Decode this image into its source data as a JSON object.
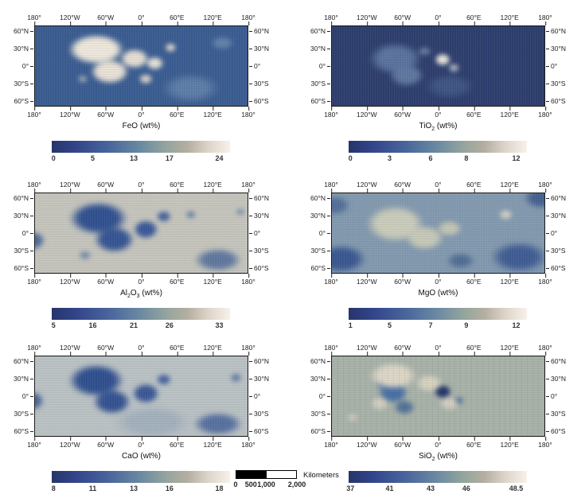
{
  "figure": {
    "kind": "lunar-elemental-abundance-maps",
    "background": "#ffffff",
    "panel_order": [
      "FeO",
      "TiO2",
      "Al2O3",
      "MgO",
      "CaO",
      "SiO2"
    ]
  },
  "axes": {
    "lon_labels": [
      "180°",
      "120°W",
      "60°W",
      "0°",
      "60°E",
      "120°E",
      "180°"
    ],
    "lon_pos": [
      0,
      16.67,
      33.33,
      50,
      66.67,
      83.33,
      100
    ],
    "lat_labels": [
      "60°N",
      "30°N",
      "0°",
      "30°S",
      "60°S"
    ],
    "lat_pos": [
      7,
      28.5,
      50,
      71.5,
      93
    ]
  },
  "colormap": {
    "stops": [
      [
        "#27356b",
        0
      ],
      [
        "#33458b",
        14
      ],
      [
        "#49659c",
        32
      ],
      [
        "#6b8aa1",
        50
      ],
      [
        "#93a49e",
        64
      ],
      [
        "#b3aea0",
        76
      ],
      [
        "#ded5c9",
        88
      ],
      [
        "#f7f1ea",
        100
      ]
    ]
  },
  "colorbar_tick_pos": [
    1,
    23,
    46,
    66,
    94
  ],
  "maps": [
    {
      "id": "feo",
      "title": "FeO (wt%)",
      "title_parts": [
        [
          "FeO",
          false
        ],
        [
          " (wt%)",
          false
        ]
      ],
      "colorbar_ticks": [
        "0",
        "5",
        "13",
        "17",
        "24"
      ]
    },
    {
      "id": "tio2",
      "title": "TiO2 (wt%)",
      "title_parts": [
        [
          "TiO",
          false
        ],
        [
          "2",
          true
        ],
        [
          " (wt%)",
          false
        ]
      ],
      "colorbar_ticks": [
        "0",
        "3",
        "6",
        "8",
        "12"
      ]
    },
    {
      "id": "al2o3",
      "title": "Al2O3 (wt%)",
      "title_parts": [
        [
          "Al",
          false
        ],
        [
          "2",
          true
        ],
        [
          "O",
          false
        ],
        [
          "3",
          true
        ],
        [
          " (wt%)",
          false
        ]
      ],
      "colorbar_ticks": [
        "5",
        "16",
        "21",
        "26",
        "33"
      ]
    },
    {
      "id": "mgo",
      "title": "MgO (wt%)",
      "title_parts": [
        [
          "MgO",
          false
        ],
        [
          " (wt%)",
          false
        ]
      ],
      "colorbar_ticks": [
        "1",
        "5",
        "7",
        "9",
        "12"
      ]
    },
    {
      "id": "cao",
      "title": "CaO (wt%)",
      "title_parts": [
        [
          "CaO",
          false
        ],
        [
          " (wt%)",
          false
        ]
      ],
      "colorbar_ticks": [
        "8",
        "11",
        "13",
        "16",
        "18"
      ]
    },
    {
      "id": "sio2",
      "title": "SiO2 (wt%)",
      "title_parts": [
        [
          "SiO",
          false
        ],
        [
          "2",
          true
        ],
        [
          " (wt%)",
          false
        ]
      ],
      "colorbar_ticks": [
        "37",
        "41",
        "43",
        "46",
        "48.5"
      ]
    }
  ],
  "scalebar": {
    "label": "Kilometers",
    "ticks": [
      "0",
      "500",
      "1,000",
      "2,000"
    ],
    "tick_pos": [
      0,
      25,
      50,
      100
    ]
  },
  "chart_data": [
    {
      "type": "heatmap",
      "title": "FeO (wt%)",
      "x_axis": {
        "label": "longitude",
        "ticks": [
          "180°",
          "120°W",
          "60°W",
          "0°",
          "60°E",
          "120°E",
          "180°"
        ],
        "range_deg": [
          -180,
          180
        ]
      },
      "y_axis": {
        "label": "latitude",
        "ticks": [
          "60°N",
          "30°N",
          "0°",
          "30°S",
          "60°S"
        ],
        "range_deg": [
          -75,
          75
        ]
      },
      "colorbar": {
        "ticks": [
          0,
          5,
          13,
          17,
          24
        ],
        "range": [
          0,
          24
        ],
        "units": "wt%"
      },
      "pattern": "High FeO (bright cream) over nearside maria around 60°W–30°E, 40°N–20°S; low FeO (dark blue) across highlands"
    },
    {
      "type": "heatmap",
      "title": "TiO2 (wt%)",
      "x_axis": {
        "label": "longitude",
        "ticks": [
          "180°",
          "120°W",
          "60°W",
          "0°",
          "60°E",
          "120°E",
          "180°"
        ],
        "range_deg": [
          -180,
          180
        ]
      },
      "y_axis": {
        "label": "latitude",
        "ticks": [
          "60°N",
          "30°N",
          "0°",
          "30°S",
          "60°S"
        ],
        "range_deg": [
          -75,
          75
        ]
      },
      "colorbar": {
        "ticks": [
          0,
          3,
          6,
          8,
          12
        ],
        "range": [
          0,
          12
        ],
        "units": "wt%"
      },
      "pattern": "Mostly low TiO2 (dark navy); moderate values in Procellarum region, brightest spot near 25°E 5°N (Mare Tranquillitatis)"
    },
    {
      "type": "heatmap",
      "title": "Al2O3 (wt%)",
      "x_axis": {
        "label": "longitude",
        "ticks": [
          "180°",
          "120°W",
          "60°W",
          "0°",
          "60°E",
          "120°E",
          "180°"
        ],
        "range_deg": [
          -180,
          180
        ]
      },
      "y_axis": {
        "label": "latitude",
        "ticks": [
          "60°N",
          "30°N",
          "0°",
          "30°S",
          "60°S"
        ],
        "range_deg": [
          -75,
          75
        ]
      },
      "colorbar": {
        "ticks": [
          5,
          16,
          21,
          26,
          33
        ],
        "range": [
          5,
          33
        ],
        "units": "wt%"
      },
      "pattern": "Low Al2O3 (dark blue) in nearside maria center-left; high Al2O3 (light gray) across highlands; blue patch lower right"
    },
    {
      "type": "heatmap",
      "title": "MgO (wt%)",
      "x_axis": {
        "label": "longitude",
        "ticks": [
          "180°",
          "120°W",
          "60°W",
          "0°",
          "60°E",
          "120°E",
          "180°"
        ],
        "range_deg": [
          -180,
          180
        ]
      },
      "y_axis": {
        "label": "latitude",
        "ticks": [
          "60°N",
          "30°N",
          "0°",
          "30°S",
          "60°S"
        ],
        "range_deg": [
          -75,
          75
        ]
      },
      "colorbar": {
        "ticks": [
          1,
          5,
          7,
          9,
          12
        ],
        "range": [
          1,
          12
        ],
        "units": "wt%"
      },
      "pattern": "High MgO (light sage) over nearside maria; mottled moderate blue elsewhere; lowest (dark blue) in southern latitudes and corners"
    },
    {
      "type": "heatmap",
      "title": "CaO (wt%)",
      "x_axis": {
        "label": "longitude",
        "ticks": [
          "180°",
          "120°W",
          "60°W",
          "0°",
          "60°E",
          "120°E",
          "180°"
        ],
        "range_deg": [
          -180,
          180
        ]
      },
      "y_axis": {
        "label": "latitude",
        "ticks": [
          "60°N",
          "30°N",
          "0°",
          "30°S",
          "60°S"
        ],
        "range_deg": [
          -75,
          75
        ]
      },
      "colorbar": {
        "ticks": [
          8,
          11,
          13,
          16,
          18
        ],
        "range": [
          8,
          18
        ],
        "units": "wt%"
      },
      "pattern": "Low CaO (dark blue) in maria center-left and lower right; high CaO (light blue-gray) in highlands"
    },
    {
      "type": "heatmap",
      "title": "SiO2 (wt%)",
      "x_axis": {
        "label": "longitude",
        "ticks": [
          "180°",
          "120°W",
          "60°W",
          "0°",
          "60°E",
          "120°E",
          "180°"
        ],
        "range_deg": [
          -180,
          180
        ]
      },
      "y_axis": {
        "label": "latitude",
        "ticks": [
          "60°N",
          "30°N",
          "0°",
          "30°S",
          "60°S"
        ],
        "range_deg": [
          -75,
          75
        ]
      },
      "colorbar": {
        "ticks": [
          37,
          41,
          43,
          46,
          48.5
        ],
        "range": [
          37,
          48.5
        ],
        "units": "wt%"
      },
      "pattern": "Nearly uniform moderate SiO2 (sage gray); lower values (blue, one dark navy blob near 25°E 0°) within maria; slightly higher cream patches at maria margins"
    }
  ],
  "scale_note": "distance scale 0–2,000 km"
}
